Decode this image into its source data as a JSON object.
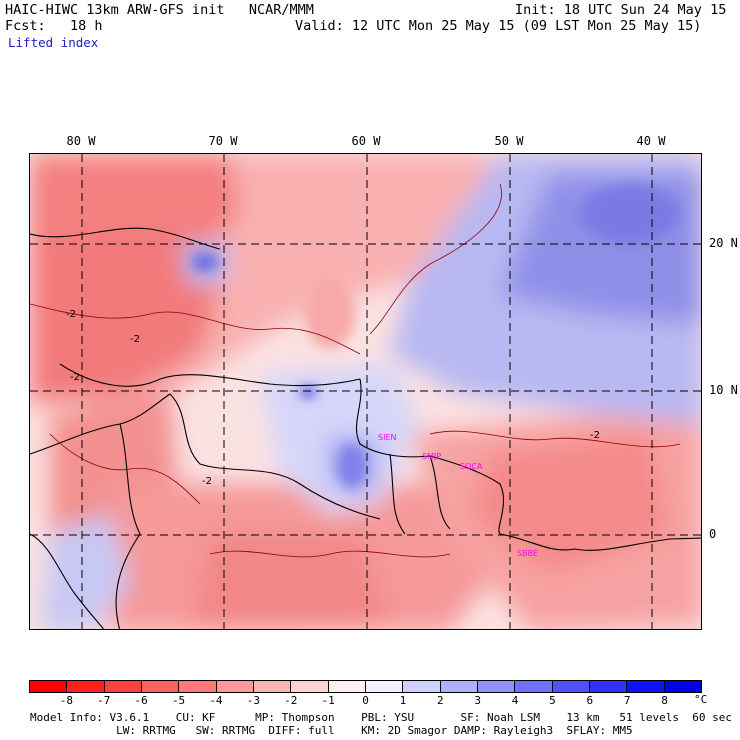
{
  "header": {
    "model_line": "HAIC-HIWC 13km ARW-GFS init   NCAR/MMM",
    "init_line": "Init: 18 UTC Sun 24 May 15",
    "fcst_line": "Fcst:   18 h",
    "valid_line": "Valid: 12 UTC Mon 25 May 15 (09 LST Mon 25 May 15)",
    "field_name": "Lifted index"
  },
  "map": {
    "lon_labels": [
      "80 W",
      "70 W",
      "60 W",
      "50 W",
      "40 W"
    ],
    "lat_labels": [
      "20 N",
      "10 N",
      "0"
    ],
    "stations": [
      "SIEN",
      "SMJP",
      "SOCA",
      "SBBE"
    ],
    "contour_labels": [
      "-2",
      "-2",
      "-2",
      "-2",
      "-2"
    ]
  },
  "colorbar": {
    "ticks": [
      "-8",
      "-7",
      "-6",
      "-5",
      "-4",
      "-3",
      "-2",
      "-1",
      "0",
      "1",
      "2",
      "3",
      "4",
      "5",
      "6",
      "7",
      "8"
    ],
    "unit": "°C",
    "colors": [
      "#ff0000",
      "#ff2020",
      "#ff4040",
      "#ff6060",
      "#ff7a7a",
      "#ff9898",
      "#ffb4b4",
      "#ffd2d2",
      "#fff0f0",
      "#f0f0ff",
      "#d0d0ff",
      "#b0b0ff",
      "#9090ff",
      "#7070ff",
      "#5050ff",
      "#3030ff",
      "#1010ff",
      "#0000e8"
    ]
  },
  "footer": {
    "line1": "Model Info: V3.6.1    CU: KF      MP: Thompson    PBL: YSU       SF: Noah LSM    13 km   51 levels  60 sec",
    "line2": "             LW: RRTMG   SW: RRTMG  DIFF: full    KM: 2D Smagor DAMP: Rayleigh3  SFLAY: MM5"
  }
}
